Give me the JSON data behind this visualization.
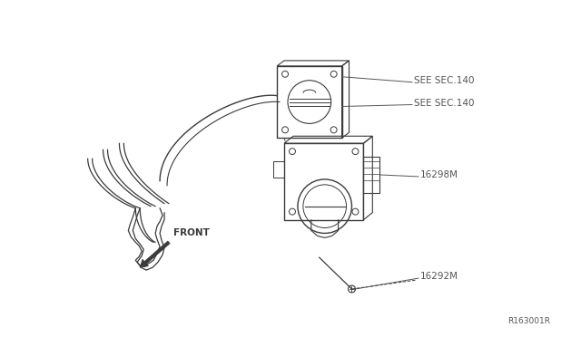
{
  "bg_color": "#ffffff",
  "line_color": "#3a3a3a",
  "label_color": "#555555",
  "ref_code": "R163001R",
  "labels": {
    "see_sec_140_top": "SEE SEC.140",
    "see_sec_140_bot": "SEE SEC.140",
    "part_16298M": "16298M",
    "part_16292M": "16292M",
    "front": "FRONT"
  },
  "fig_width": 6.4,
  "fig_height": 3.72,
  "dpi": 100
}
